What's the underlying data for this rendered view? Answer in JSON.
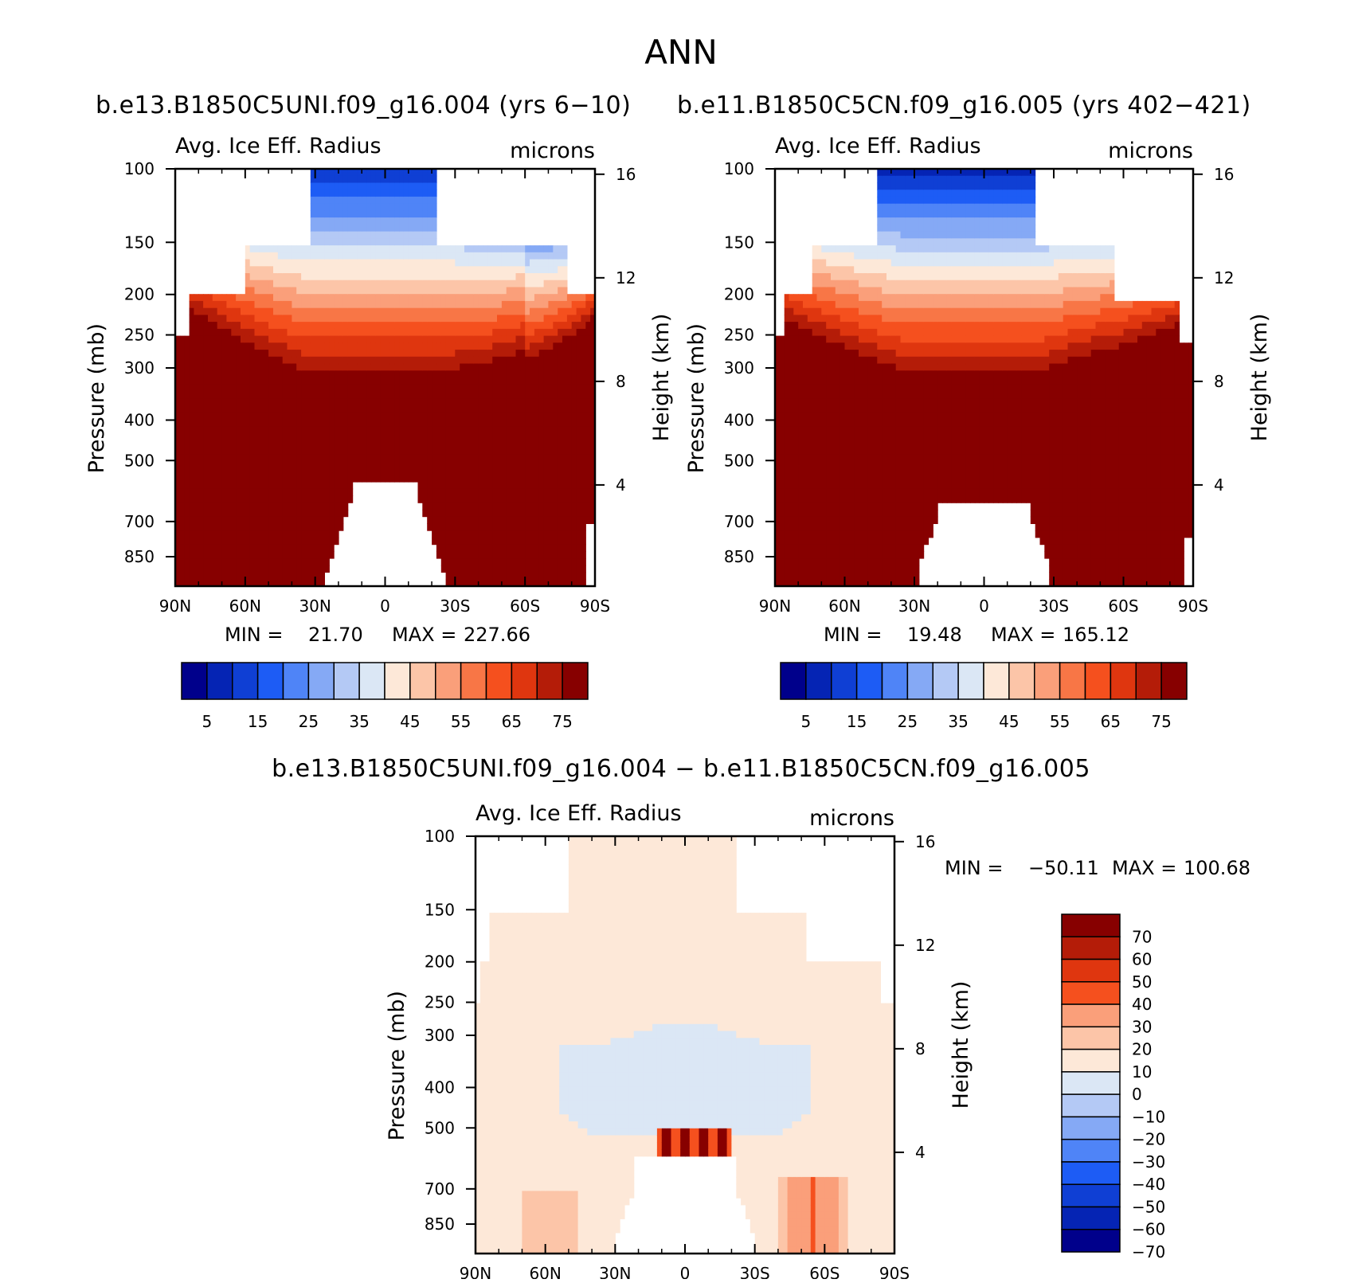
{
  "figure": {
    "season": "ANN",
    "diff_title": "b.e13.B1850C5UNI.f09_g16.004 − b.e11.B1850C5CN.f09_g16.005"
  },
  "chart_data": [
    {
      "type": "contour",
      "case": "b.e13.B1850C5UNI.f09_g16.004 (yrs 6−10)",
      "title": "Avg. Ice Eff. Radius",
      "units": "microns",
      "xlabel": "",
      "ylabel": "Pressure (mb)",
      "ylabel_right": "Height (km)",
      "x_ticks": [
        "90N",
        "60N",
        "30N",
        "0",
        "30S",
        "60S",
        "90S"
      ],
      "y_ticks": [
        100,
        150,
        200,
        250,
        300,
        400,
        500,
        700,
        850
      ],
      "y_right_ticks": [
        16,
        12,
        8,
        4
      ],
      "ylim": [
        100,
        1000
      ],
      "min": "21.70",
      "max": "227.66",
      "min_label": "MIN  =",
      "max_label": "MAX  =",
      "levels": [
        0,
        5,
        10,
        15,
        20,
        25,
        30,
        35,
        40,
        45,
        50,
        55,
        60,
        65,
        70,
        75,
        80
      ],
      "colorbar_labels": [
        "5",
        "15",
        "25",
        "35",
        "45",
        "55",
        "65",
        "75"
      ]
    },
    {
      "type": "contour",
      "case": "b.e11.B1850C5CN.f09_g16.005 (yrs 402−421)",
      "title": "Avg. Ice Eff. Radius",
      "units": "microns",
      "xlabel": "",
      "ylabel": "Pressure (mb)",
      "ylabel_right": "Height (km)",
      "x_ticks": [
        "90N",
        "60N",
        "30N",
        "0",
        "30S",
        "60S",
        "90S"
      ],
      "y_ticks": [
        100,
        150,
        200,
        250,
        300,
        400,
        500,
        700,
        850
      ],
      "y_right_ticks": [
        16,
        12,
        8,
        4
      ],
      "ylim": [
        100,
        1000
      ],
      "min": "19.48",
      "max": "165.12",
      "min_label": "MIN  =",
      "max_label": "MAX  =",
      "levels": [
        0,
        5,
        10,
        15,
        20,
        25,
        30,
        35,
        40,
        45,
        50,
        55,
        60,
        65,
        70,
        75,
        80
      ],
      "colorbar_labels": [
        "5",
        "15",
        "25",
        "35",
        "45",
        "55",
        "65",
        "75"
      ]
    },
    {
      "type": "contour",
      "case": "difference",
      "title": "Avg. Ice Eff. Radius",
      "units": "microns",
      "xlabel": "",
      "ylabel": "Pressure (mb)",
      "ylabel_right": "Height (km)",
      "x_ticks": [
        "90N",
        "60N",
        "30N",
        "0",
        "30S",
        "60S",
        "90S"
      ],
      "y_ticks": [
        100,
        150,
        200,
        250,
        300,
        400,
        500,
        700,
        850
      ],
      "y_right_ticks": [
        16,
        12,
        8,
        4
      ],
      "ylim": [
        100,
        1000
      ],
      "min": "−50.11",
      "max": "100.68",
      "min_label": "MIN  =",
      "max_label": "MAX  =",
      "levels": [
        -80,
        -70,
        -60,
        -50,
        -40,
        -30,
        -20,
        -10,
        0,
        10,
        20,
        30,
        40,
        50,
        60,
        70,
        80
      ],
      "colorbar_labels": [
        "70",
        "60",
        "50",
        "40",
        "30",
        "20",
        "10",
        "0",
        "−10",
        "−20",
        "−30",
        "−40",
        "−50",
        "−60",
        "−70"
      ]
    }
  ],
  "colors": {
    "seq": [
      "#00008b",
      "#0524b4",
      "#0f3fd4",
      "#1d5cf5",
      "#4f84f7",
      "#85a9f5",
      "#b4c9f5",
      "#dbe7f5",
      "#fde8d8",
      "#fcc5a8",
      "#fa9f7a",
      "#f87646",
      "#f5501e",
      "#df360f",
      "#b41c08",
      "#870000"
    ],
    "diff": [
      "#870000",
      "#b41c08",
      "#df360f",
      "#f5501e",
      "#fa9f7a",
      "#fcc5a8",
      "#fde8d8",
      "#dbe7f5",
      "#b4c9f5",
      "#85a9f5",
      "#4f84f7",
      "#1d5cf5",
      "#0f3fd4",
      "#0524b4",
      "#00008b"
    ]
  }
}
